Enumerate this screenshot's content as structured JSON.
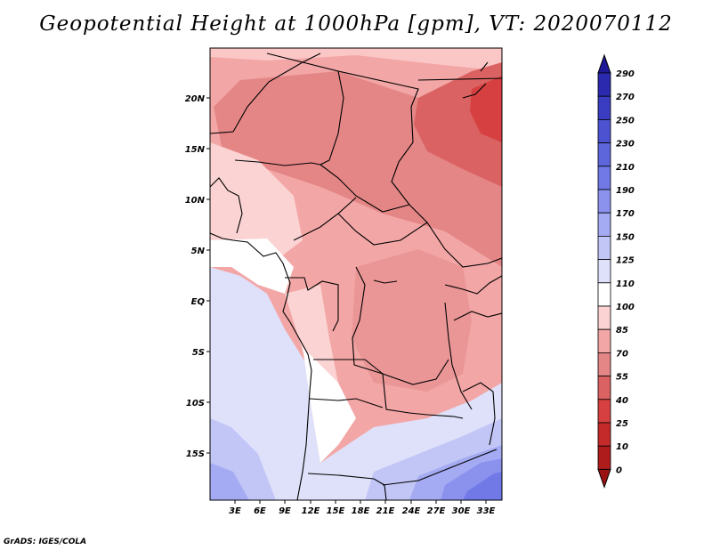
{
  "title": "Geopotential Height at 1000hPa [gpm], VT: 2020070112",
  "credit": "GrADS: IGES/COLA",
  "map": {
    "lat_labels": [
      "20N",
      "15N",
      "10N",
      "5N",
      "EQ",
      "5S",
      "10S",
      "15S"
    ],
    "lon_labels": [
      "3E",
      "6E",
      "9E",
      "12E",
      "15E",
      "18E",
      "21E",
      "24E",
      "27E",
      "30E",
      "33E"
    ]
  },
  "colorbar": {
    "levels": [
      "290",
      "270",
      "250",
      "230",
      "210",
      "190",
      "170",
      "150",
      "125",
      "110",
      "100",
      "85",
      "70",
      "55",
      "40",
      "25",
      "10",
      "0"
    ],
    "colors": [
      "#1e1796",
      "#2b2aae",
      "#3a3cc2",
      "#4c52d0",
      "#5e66dc",
      "#7079e6",
      "#8b92ee",
      "#a5abf2",
      "#c2c6f6",
      "#dfe1fa",
      "#ffffff",
      "#fbd3d3",
      "#f3a6a6",
      "#e48686",
      "#db6262",
      "#d64040",
      "#c52a2a",
      "#ae1c1c",
      "#9a1212"
    ]
  }
}
